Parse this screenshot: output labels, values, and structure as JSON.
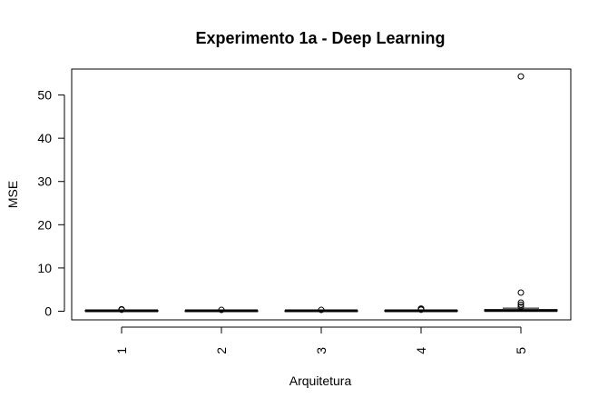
{
  "chart_data": {
    "type": "boxplot",
    "title": "Experimento 1a - Deep Learning",
    "xlabel": "Arquitetura",
    "ylabel": "MSE",
    "categories": [
      "1",
      "2",
      "3",
      "4",
      "5"
    ],
    "ylim": [
      -2,
      56
    ],
    "yticks": [
      0,
      10,
      20,
      30,
      40,
      50
    ],
    "grid": false,
    "legend": "none",
    "boxes": [
      {
        "category": "1",
        "min": 0.0,
        "q1": 0.05,
        "median": 0.1,
        "q3": 0.2,
        "max": 0.3,
        "outliers": [
          0.35,
          0.4,
          0.45
        ]
      },
      {
        "category": "2",
        "min": 0.0,
        "q1": 0.05,
        "median": 0.1,
        "q3": 0.15,
        "max": 0.25,
        "outliers": [
          0.3
        ]
      },
      {
        "category": "3",
        "min": 0.0,
        "q1": 0.05,
        "median": 0.1,
        "q3": 0.15,
        "max": 0.25,
        "outliers": [
          0.3
        ]
      },
      {
        "category": "4",
        "min": 0.0,
        "q1": 0.05,
        "median": 0.1,
        "q3": 0.2,
        "max": 0.3,
        "outliers": [
          0.35,
          0.5,
          0.6
        ]
      },
      {
        "category": "5",
        "min": 0.0,
        "q1": 0.05,
        "median": 0.15,
        "q3": 0.35,
        "max": 0.7,
        "outliers": [
          1.0,
          1.5,
          2.0,
          4.3,
          54.3
        ]
      }
    ]
  }
}
